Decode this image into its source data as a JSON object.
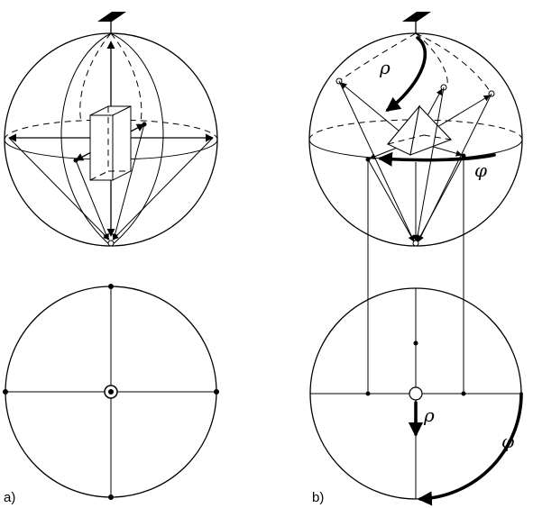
{
  "panels": [
    {
      "id": "a",
      "label": "a)"
    },
    {
      "id": "b",
      "label": "b)"
    }
  ],
  "symbols": {
    "rho": "ρ",
    "phi": "φ"
  }
}
